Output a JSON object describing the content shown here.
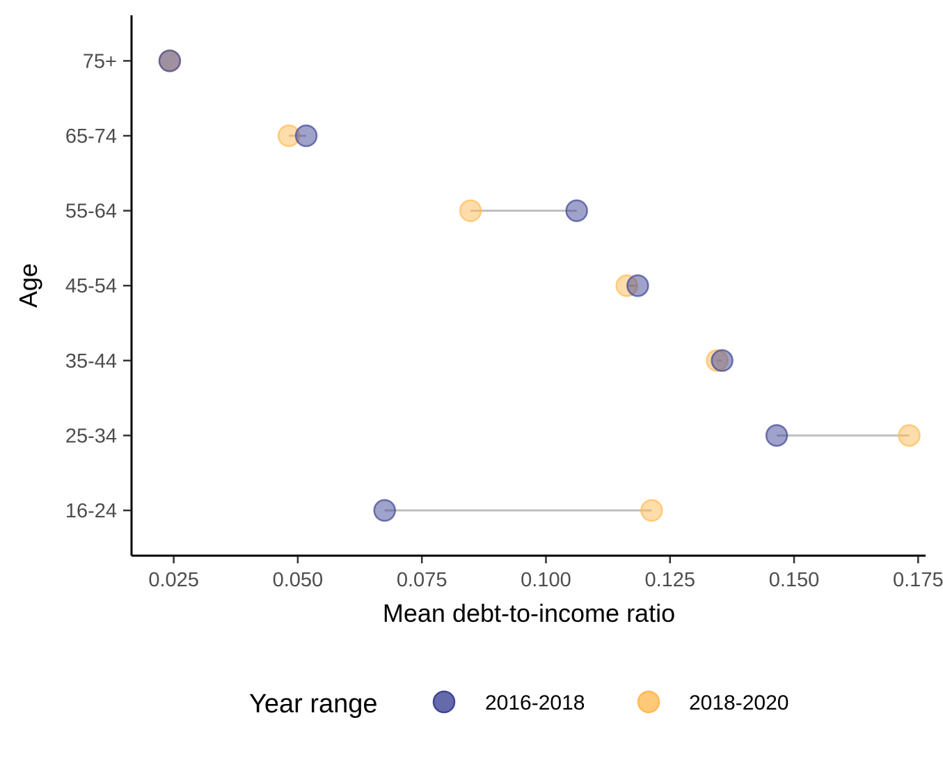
{
  "chart_data": {
    "type": "scatter",
    "subtype": "dumbbell",
    "title": "",
    "xlabel": "Mean debt-to-income ratio",
    "ylabel": "Age",
    "xlim": [
      0.0165,
      0.1765
    ],
    "x_ticks": [
      0.025,
      0.05,
      0.075,
      0.1,
      0.125,
      0.15,
      0.175
    ],
    "x_tick_labels": [
      "0.025",
      "0.050",
      "0.075",
      "0.100",
      "0.125",
      "0.150",
      "0.175"
    ],
    "categories": [
      "16-24",
      "25-34",
      "35-44",
      "45-54",
      "55-64",
      "65-74",
      "75+"
    ],
    "series": [
      {
        "name": "2016-2018",
        "color": "#3f4596",
        "values": [
          0.0675,
          0.1465,
          0.1355,
          0.1185,
          0.1062,
          0.0517,
          0.0242
        ]
      },
      {
        "name": "2018-2020",
        "color": "#ffbb55",
        "values": [
          0.1213,
          0.1732,
          0.1345,
          0.1163,
          0.0848,
          0.0482,
          0.0242
        ]
      }
    ],
    "segment_color": "#bfbfbf",
    "grid": false,
    "legend": {
      "title": "Year range",
      "position": "bottom"
    }
  }
}
